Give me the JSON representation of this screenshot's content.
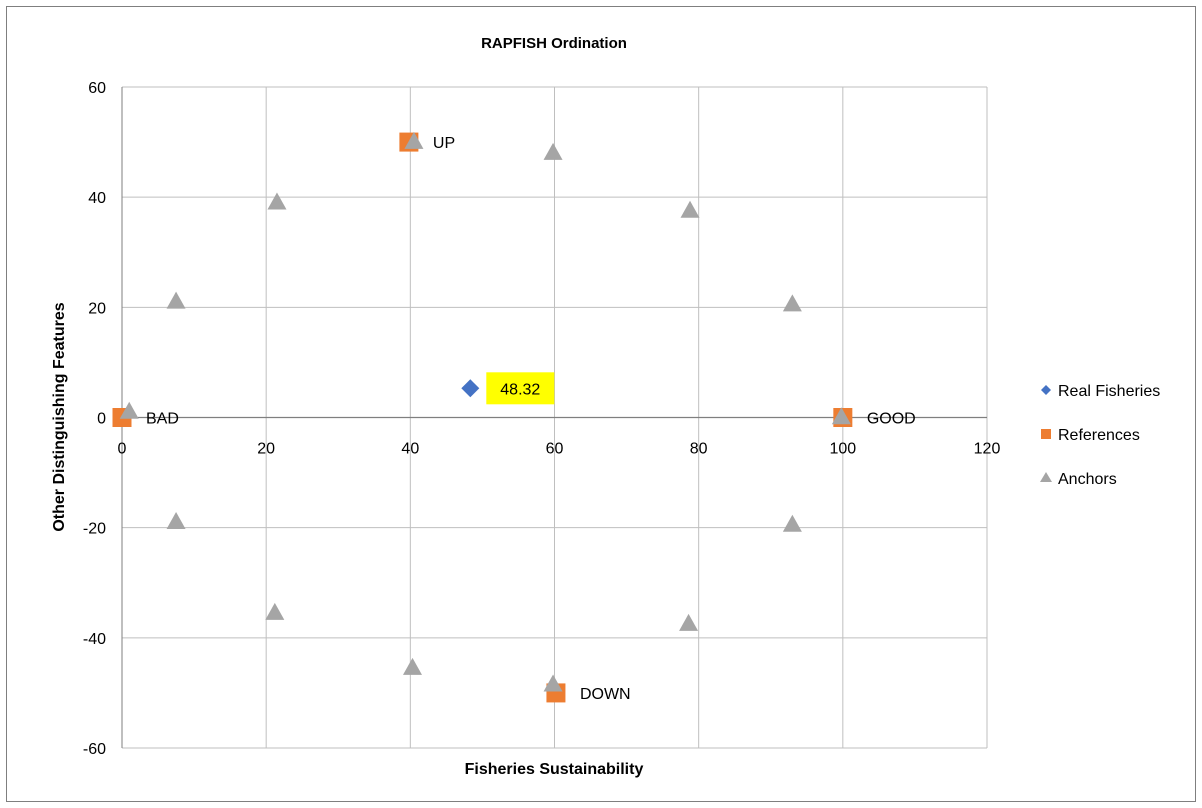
{
  "chart_data": {
    "type": "scatter",
    "title": "RAPFISH Ordination",
    "xlabel": "Fisheries Sustainability",
    "ylabel": "Other Distinguishing Features",
    "xlim": [
      0,
      120
    ],
    "ylim": [
      -60,
      60
    ],
    "xticks": [
      0,
      20,
      40,
      60,
      80,
      100,
      120
    ],
    "yticks": [
      -60,
      -40,
      -20,
      0,
      20,
      40,
      60
    ],
    "grid": true,
    "legend_position": "right",
    "series": [
      {
        "name": "Real Fisheries",
        "marker": "diamond",
        "color": "#4472C4",
        "points": [
          {
            "x": 48.32,
            "y": 5.3,
            "label": "48.32"
          }
        ]
      },
      {
        "name": "References",
        "marker": "square",
        "color": "#ED7D31",
        "points": [
          {
            "x": 0,
            "y": 0,
            "label": "BAD"
          },
          {
            "x": 100,
            "y": 0,
            "label": "GOOD"
          },
          {
            "x": 39.8,
            "y": 50,
            "label": "UP"
          },
          {
            "x": 60.2,
            "y": -50,
            "label": "DOWN"
          }
        ]
      },
      {
        "name": "Anchors",
        "marker": "triangle",
        "color": "#A5A5A5",
        "points": [
          {
            "x": 1,
            "y": 1
          },
          {
            "x": 7.5,
            "y": 21
          },
          {
            "x": 21.5,
            "y": 39
          },
          {
            "x": 40.5,
            "y": 50
          },
          {
            "x": 59.8,
            "y": 48
          },
          {
            "x": 78.8,
            "y": 37.5
          },
          {
            "x": 93,
            "y": 20.5
          },
          {
            "x": 99.8,
            "y": 0
          },
          {
            "x": 93,
            "y": -19.5
          },
          {
            "x": 78.6,
            "y": -37.5
          },
          {
            "x": 59.8,
            "y": -48.5
          },
          {
            "x": 40.3,
            "y": -45.5
          },
          {
            "x": 21.2,
            "y": -35.5
          },
          {
            "x": 7.5,
            "y": -19
          }
        ]
      }
    ]
  }
}
